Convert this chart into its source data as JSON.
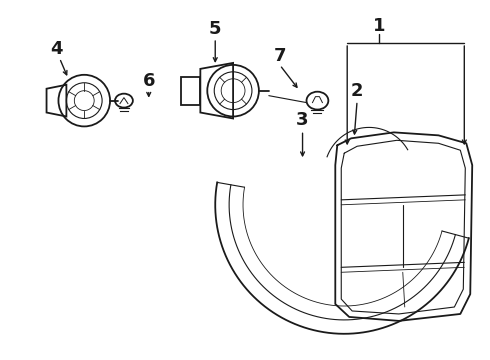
{
  "bg_color": "#ffffff",
  "line_color": "#1a1a1a",
  "label_color": "#000000",
  "label_fontsize": 13,
  "label_fontweight": "bold",
  "lw_main": 1.3,
  "lw_thin": 0.8,
  "lw_inner": 0.6
}
